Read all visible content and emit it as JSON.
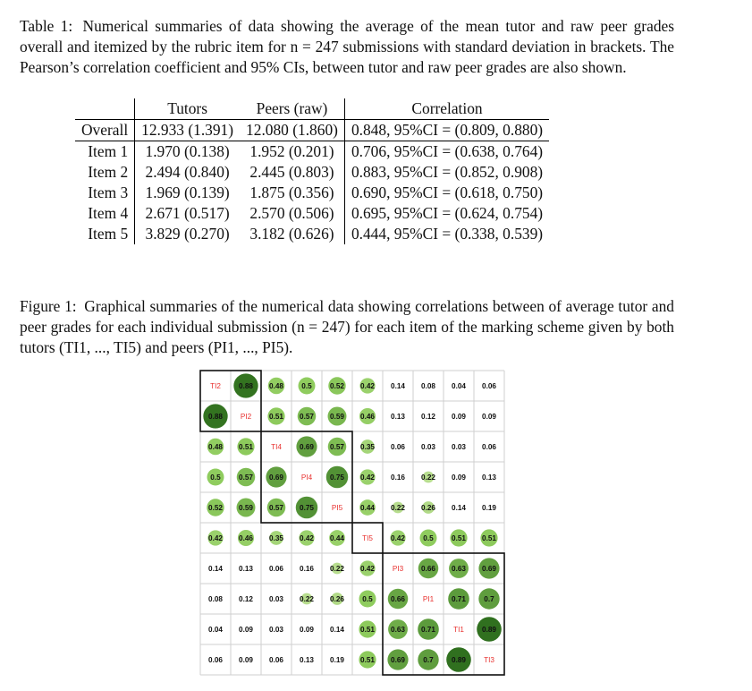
{
  "table_caption": {
    "label": "Table 1:",
    "text": "Numerical summaries of data showing the average of the mean tutor and raw peer grades overall and itemized by the rubric item for n = 247 submissions with standard deviation in brackets. The Pearson’s correlation coefficient and 95% CIs, between tutor and raw peer grades are also shown."
  },
  "table": {
    "headers": [
      "",
      "Tutors",
      "Peers (raw)",
      "Correlation"
    ],
    "rows": [
      {
        "label": "Overall",
        "tutors": "12.933 (1.391)",
        "peers": "12.080 (1.860)",
        "correlation": "0.848, 95%CI = (0.809, 0.880)"
      },
      {
        "label": "Item 1",
        "tutors": "1.970 (0.138)",
        "peers": "1.952 (0.201)",
        "correlation": "0.706, 95%CI = (0.638, 0.764)"
      },
      {
        "label": "Item 2",
        "tutors": "2.494 (0.840)",
        "peers": "2.445 (0.803)",
        "correlation": "0.883, 95%CI = (0.852, 0.908)"
      },
      {
        "label": "Item 3",
        "tutors": "1.969 (0.139)",
        "peers": "1.875 (0.356)",
        "correlation": "0.690, 95%CI = (0.618, 0.750)"
      },
      {
        "label": "Item 4",
        "tutors": "2.671 (0.517)",
        "peers": "2.570 (0.506)",
        "correlation": "0.695, 95%CI = (0.624, 0.754)"
      },
      {
        "label": "Item 5",
        "tutors": "3.829 (0.270)",
        "peers": "3.182 (0.626)",
        "correlation": "0.444, 95%CI = (0.338, 0.539)"
      }
    ]
  },
  "figure_caption": {
    "label": "Figure 1:",
    "text": "Graphical summaries of the numerical data showing correlations between of average tutor and peer grades for each individual submission (n = 247) for each item of the marking scheme given by both tutors (TI1, ..., TI5) and peers (PI1, ..., PI5)."
  },
  "chart_data": {
    "type": "heatmap",
    "variables": [
      "TI2",
      "PI2",
      "TI4",
      "PI4",
      "PI5",
      "TI5",
      "PI3",
      "PI1",
      "TI1",
      "TI3"
    ],
    "matrix": [
      [
        null,
        0.88,
        0.48,
        0.5,
        0.52,
        0.42,
        0.14,
        0.08,
        0.04,
        0.06
      ],
      [
        0.88,
        null,
        0.51,
        0.57,
        0.59,
        0.46,
        0.13,
        0.12,
        0.09,
        0.09
      ],
      [
        0.48,
        0.51,
        null,
        0.69,
        0.57,
        0.35,
        0.06,
        0.03,
        0.03,
        0.06
      ],
      [
        0.5,
        0.57,
        0.69,
        null,
        0.75,
        0.42,
        0.16,
        0.22,
        0.09,
        0.13
      ],
      [
        0.52,
        0.59,
        0.57,
        0.75,
        null,
        0.44,
        0.22,
        0.26,
        0.14,
        0.19
      ],
      [
        0.42,
        0.46,
        0.35,
        0.42,
        0.44,
        null,
        0.42,
        0.5,
        0.51,
        0.51
      ],
      [
        0.14,
        0.13,
        0.06,
        0.16,
        0.22,
        0.42,
        null,
        0.66,
        0.63,
        0.69
      ],
      [
        0.08,
        0.12,
        0.03,
        0.22,
        0.26,
        0.5,
        0.66,
        null,
        0.71,
        0.7
      ],
      [
        0.04,
        0.09,
        0.03,
        0.09,
        0.14,
        0.51,
        0.63,
        0.71,
        null,
        0.89
      ],
      [
        0.06,
        0.09,
        0.06,
        0.13,
        0.19,
        0.51,
        0.69,
        0.7,
        0.89,
        null
      ]
    ],
    "clusters": [
      {
        "start": 0,
        "end": 1
      },
      {
        "start": 2,
        "end": 4
      },
      {
        "start": 5,
        "end": 5
      },
      {
        "start": 6,
        "end": 9
      }
    ],
    "colors": {
      "diag_label": "#e8302e",
      "grid": "#cfcfcf",
      "circle_low": "#c8e4a2",
      "circle_mid": "#8fcc5e",
      "circle_high": "#2e6e1d"
    }
  }
}
